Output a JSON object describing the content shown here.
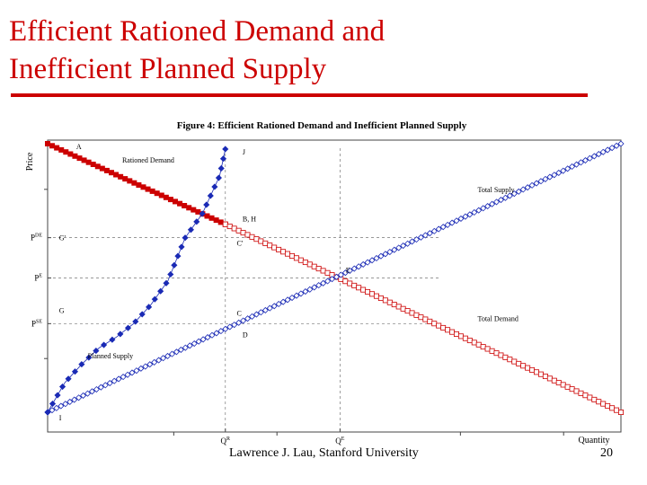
{
  "slide": {
    "title": "Efficient Rationed Demand and Inefficient Planned Supply",
    "title_line1": "Efficient Rationed Demand and",
    "title_line2": "Inefficient Planned Supply",
    "footer": "Lawrence J. Lau, Stanford University",
    "page_number": "20"
  },
  "colors": {
    "title": "#cc0000",
    "demand": "#cc0000",
    "supply": "#1a2ab5"
  },
  "chart_data": {
    "type": "line",
    "title": "Figure 4: Efficient Rationed Demand and Inefficient Planned Supply",
    "xlabel": "Quantity",
    "ylabel": "Price",
    "xlim": [
      0,
      100
    ],
    "ylim": [
      0,
      100
    ],
    "y_ticks": [
      {
        "label": "P^DE",
        "value": 65
      },
      {
        "label": "P^E",
        "value": 50
      },
      {
        "label": "P^SE",
        "value": 33
      }
    ],
    "x_ticks": [
      {
        "label": "Q^R",
        "value": 31
      },
      {
        "label": "Q^E",
        "value": 51
      }
    ],
    "series": [
      {
        "name": "Rationed Demand",
        "style": "filled-square",
        "color": "#cc0000",
        "x": [
          0,
          31
        ],
        "y": [
          100,
          70
        ]
      },
      {
        "name": "Total Demand",
        "style": "open-square",
        "color": "#cc0000",
        "x": [
          31,
          100
        ],
        "y": [
          70,
          0
        ]
      },
      {
        "name": "Total Supply",
        "style": "open-diamond",
        "color": "#1a2ab5",
        "x": [
          0,
          100
        ],
        "y": [
          0,
          100
        ]
      },
      {
        "name": "Planned Supply",
        "style": "filled-diamond",
        "color": "#1a2ab5",
        "points": [
          [
            0,
            0
          ],
          [
            3,
            11
          ],
          [
            6,
            18
          ],
          [
            9,
            24
          ],
          [
            12,
            28
          ],
          [
            15,
            33
          ],
          [
            18,
            40
          ],
          [
            21,
            49
          ],
          [
            24,
            65
          ],
          [
            27,
            74
          ],
          [
            30,
            88
          ],
          [
            31,
            98
          ]
        ]
      }
    ],
    "annotations": [
      {
        "text": "A",
        "x": 5,
        "y": 98
      },
      {
        "text": "J",
        "x": 34,
        "y": 96
      },
      {
        "text": "Rationed Demand",
        "x": 13,
        "y": 93
      },
      {
        "text": "Total Supply",
        "x": 75,
        "y": 82
      },
      {
        "text": "B, H",
        "x": 34,
        "y": 71
      },
      {
        "text": "G'",
        "x": 2,
        "y": 64
      },
      {
        "text": "C'",
        "x": 33,
        "y": 62
      },
      {
        "text": "E",
        "x": 52,
        "y": 52
      },
      {
        "text": "G",
        "x": 2,
        "y": 37
      },
      {
        "text": "C",
        "x": 33,
        "y": 36
      },
      {
        "text": "Total Demand",
        "x": 75,
        "y": 34
      },
      {
        "text": "D",
        "x": 34,
        "y": 28
      },
      {
        "text": "Planned Supply",
        "x": 7,
        "y": 20
      },
      {
        "text": "I",
        "x": 2,
        "y": -3
      }
    ],
    "guides": [
      {
        "label": "horizontal at P^DE",
        "y": 65
      },
      {
        "label": "horizontal at P^E",
        "y": 50
      },
      {
        "label": "horizontal at P^SE",
        "y": 33
      },
      {
        "label": "vertical at Q^R",
        "x": 31
      },
      {
        "label": "vertical at Q^E",
        "x": 51
      }
    ]
  }
}
